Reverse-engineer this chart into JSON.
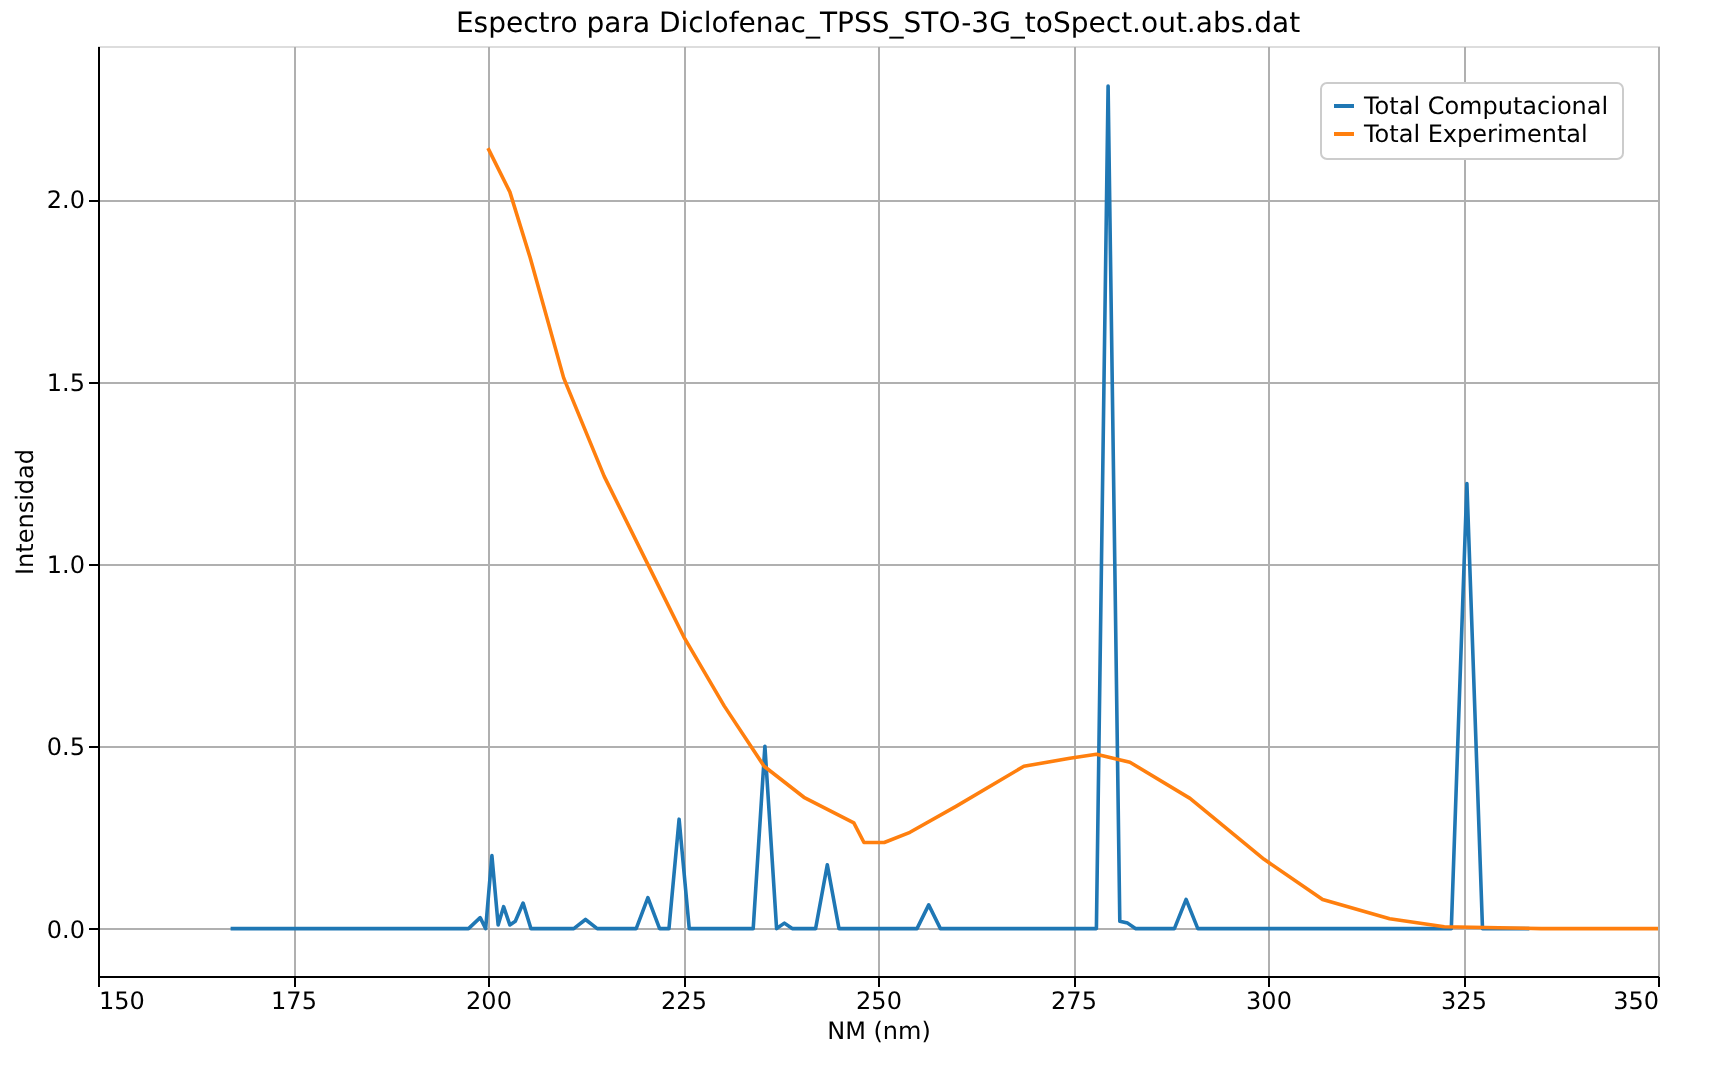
{
  "chart_data": {
    "type": "line",
    "title": "Espectro para Diclofenac_TPSS_STO-3G_toSpect.out.abs.dat",
    "xlabel": "NM (nm)",
    "ylabel": "Intensidad",
    "xlim": [
      150,
      350
    ],
    "xticks": [
      150,
      175,
      200,
      225,
      250,
      275,
      300,
      325,
      350
    ],
    "ylim": [
      -0.13,
      2.42
    ],
    "yticks": [
      {
        "value": 0,
        "label": "0.0"
      },
      0.5,
      {
        "value": 1,
        "label": "1.0"
      },
      1.5,
      {
        "value": 2,
        "label": "2.0"
      }
    ],
    "grid": true,
    "legend": "top right",
    "series": [
      {
        "name": "Total Computacional",
        "color": "#1f77b4",
        "x": [
          167,
          197.5,
          199,
          199.7,
          200.5,
          201.3,
          202,
          202.8,
          203.5,
          204.5,
          205.5,
          211,
          212.5,
          214,
          219,
          220.5,
          222,
          223.2,
          224.5,
          225.8,
          234,
          235.5,
          237,
          238,
          239,
          242,
          243.5,
          245,
          255,
          256.5,
          258,
          278,
          279.5,
          281,
          282,
          283,
          288,
          289.5,
          291,
          323.5,
          325.5,
          327.5,
          333.5
        ],
        "values": [
          0,
          0,
          0.03,
          0.0,
          0.2,
          0.01,
          0.06,
          0.01,
          0.02,
          0.07,
          0,
          0,
          0.025,
          0,
          0,
          0.085,
          0,
          0,
          0.3,
          0,
          0,
          0.5,
          0,
          0.015,
          0,
          0,
          0.175,
          0,
          0,
          0.065,
          0,
          0,
          2.31,
          0.02,
          0.015,
          0,
          0,
          0.08,
          0,
          0,
          1.22,
          0,
          0
        ]
      },
      {
        "name": "Total Experimental",
        "color": "#ff7f0e",
        "x": [
          200,
          202.8,
          205.4,
          209.7,
          214.9,
          220,
          225.1,
          230.3,
          235.4,
          240.5,
          246.9,
          248.2,
          250.8,
          254.1,
          260,
          268.7,
          274.6,
          278,
          282.3,
          290,
          299.5,
          307,
          315.6,
          322.6,
          335,
          350
        ],
        "values": [
          2.14,
          2.02,
          1.84,
          1.51,
          1.24,
          1.02,
          0.8,
          0.61,
          0.445,
          0.36,
          0.29,
          0.236,
          0.236,
          0.264,
          0.335,
          0.445,
          0.467,
          0.478,
          0.456,
          0.357,
          0.19,
          0.08,
          0.027,
          0.005,
          0.0,
          0.0
        ]
      }
    ]
  }
}
